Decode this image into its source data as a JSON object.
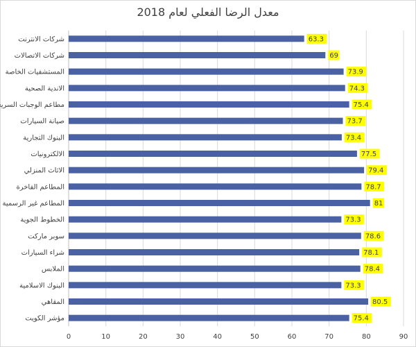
{
  "chart_data": {
    "type": "bar",
    "orientation": "horizontal",
    "title": "معدل الرضا الفعلي لعام 2018",
    "xlabel": "",
    "ylabel": "",
    "xlim": [
      0,
      90
    ],
    "xticks": [
      0,
      10,
      20,
      30,
      40,
      50,
      60,
      70,
      80,
      90
    ],
    "grid": true,
    "legend": "none",
    "bar_color": "#4a62a4",
    "label_bg": "#ffff00",
    "categories": [
      "شركات الانترنت",
      "شركات الاتصالات",
      "المستشفيات الخاصة",
      "الاندية الصحية",
      "مطاعم الوجبات السريعة",
      "صيانة السيارات",
      "البنوك التجارية",
      "الالكترونيات",
      "الاثاث المنزلي",
      "المطاعم الفاخرة",
      "المطاعم غير الرسمية",
      "الخطوط الجوية",
      "سوبر ماركت",
      "شراء السيارات",
      "الملابس",
      "البنوك الاسلامية",
      "المقاهي",
      "مؤشر الكويت"
    ],
    "values": [
      63.3,
      69,
      73.9,
      74.3,
      75.4,
      73.7,
      73.4,
      77.5,
      79.4,
      78.7,
      81,
      73.3,
      78.6,
      78.1,
      78.4,
      73.3,
      80.5,
      75.4
    ],
    "value_labels": [
      "63.3",
      "69",
      "73.9",
      "74.3",
      "75.4",
      "73.7",
      "73.4",
      "77.5",
      "79.4",
      "78.7",
      "81",
      "73.3",
      "78.6",
      "78.1",
      "78.4",
      "73.3",
      "80.5",
      "75.4"
    ]
  }
}
